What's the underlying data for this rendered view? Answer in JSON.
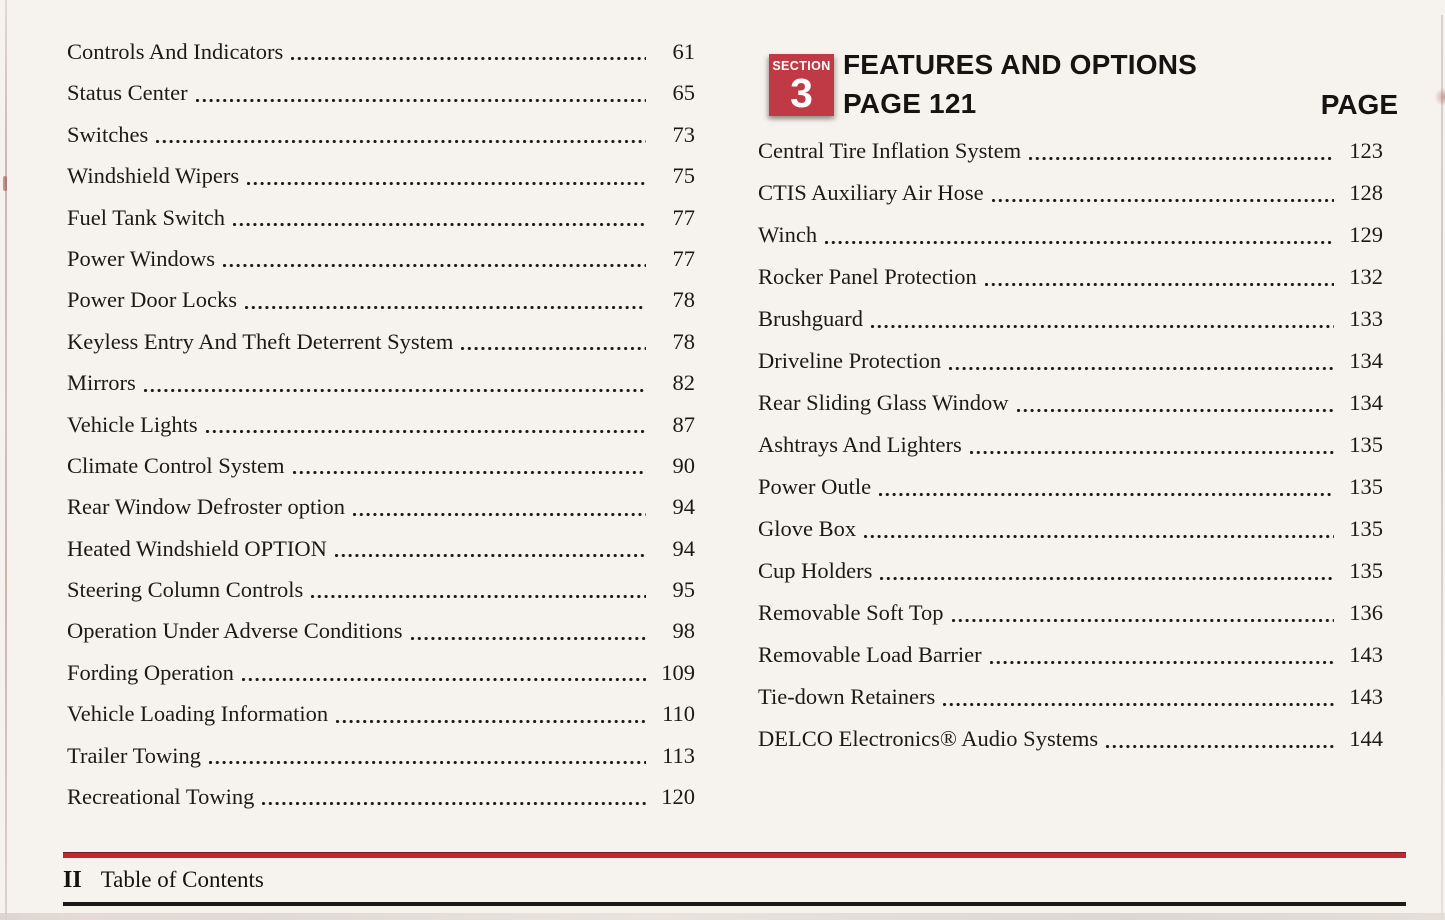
{
  "page": {
    "background": "#f6f3ee",
    "text_color": "#1b1a18",
    "accent_red": "#c2262f",
    "badge_red": "#c03a45"
  },
  "left_column": {
    "entries": [
      {
        "title": "Controls And Indicators",
        "page": "61"
      },
      {
        "title": "Status Center",
        "page": "65"
      },
      {
        "title": "Switches",
        "page": "73"
      },
      {
        "title": "Windshield Wipers",
        "page": "75"
      },
      {
        "title": "Fuel Tank Switch",
        "page": "77"
      },
      {
        "title": "Power Windows",
        "page": "77"
      },
      {
        "title": "Power Door Locks",
        "page": "78"
      },
      {
        "title": "Keyless Entry And Theft Deterrent System",
        "page": "78"
      },
      {
        "title": "Mirrors",
        "page": "82"
      },
      {
        "title": "Vehicle Lights",
        "page": "87"
      },
      {
        "title": "Climate Control System",
        "page": "90"
      },
      {
        "title": "Rear Window Defroster option",
        "page": "94"
      },
      {
        "title": "Heated Windshield OPTION",
        "page": "94"
      },
      {
        "title": "Steering Column Controls",
        "page": "95"
      },
      {
        "title": "Operation Under Adverse Conditions",
        "page": "98"
      },
      {
        "title": "Fording Operation",
        "page": "109"
      },
      {
        "title": "Vehicle Loading Information",
        "page": "110"
      },
      {
        "title": "Trailer Towing",
        "page": "113"
      },
      {
        "title": "Recreational Towing",
        "page": "120"
      }
    ]
  },
  "right_column": {
    "section_badge": {
      "label": "SECTION",
      "number": "3"
    },
    "heading_line1": "FEATURES AND OPTIONS",
    "heading_line2": "PAGE 121",
    "page_column_label": "PAGE",
    "entries": [
      {
        "title": "Central Tire Inflation System",
        "page": "123"
      },
      {
        "title": "CTIS Auxiliary Air Hose",
        "page": "128"
      },
      {
        "title": "Winch",
        "page": "129"
      },
      {
        "title": "Rocker Panel Protection",
        "page": "132"
      },
      {
        "title": "Brushguard",
        "page": "133"
      },
      {
        "title": "Driveline Protection",
        "page": "134"
      },
      {
        "title": "Rear Sliding Glass Window",
        "page": "134"
      },
      {
        "title": "Ashtrays And Lighters",
        "page": "135"
      },
      {
        "title": "Power Outle",
        "page": "135"
      },
      {
        "title": "Glove Box",
        "page": "135"
      },
      {
        "title": "Cup Holders",
        "page": "135"
      },
      {
        "title": "Removable Soft Top",
        "page": "136"
      },
      {
        "title": "Removable Load Barrier",
        "page": "143"
      },
      {
        "title": "Tie-down Retainers",
        "page": "143"
      },
      {
        "title": "DELCO Electronics® Audio Systems",
        "page": "144"
      }
    ]
  },
  "footer": {
    "page_number": "II",
    "label": "Table of Contents"
  }
}
